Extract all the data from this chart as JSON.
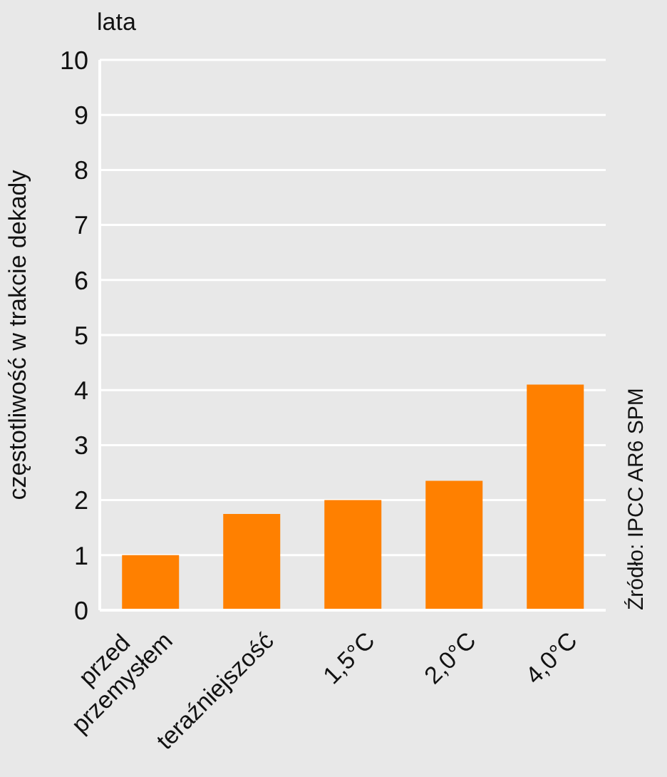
{
  "chart_data": {
    "type": "bar",
    "ylabel": "częstotliwość w trakcie dekady",
    "categories": [
      "przed przemysłem",
      "teraźniejszość",
      "1,5°C",
      "2,0°C",
      "4,0°C"
    ],
    "values": [
      1,
      1.75,
      2,
      2.35,
      4.1
    ],
    "color": "#ff8000",
    "ylim": [
      0,
      10
    ],
    "yticks": [
      0,
      1,
      2,
      3,
      4,
      5,
      6,
      7,
      8,
      9,
      10
    ],
    "grid": "y",
    "annotations": [
      "lata",
      "Źródło: IPCC AR6 SPM"
    ]
  }
}
